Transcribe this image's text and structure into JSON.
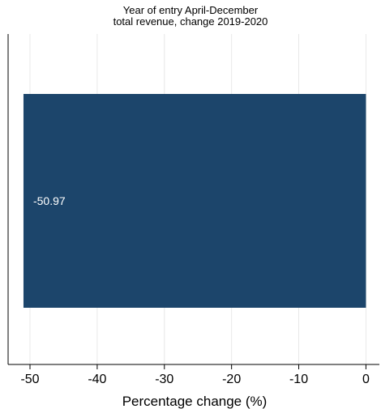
{
  "chart_data": {
    "type": "bar",
    "orientation": "horizontal",
    "title": "Year of entry April-December",
    "subtitle": "total revenue, change 2019-2020",
    "xlabel": "Percentage change (%)",
    "ylabel": "",
    "categories": [
      ""
    ],
    "values": [
      -50.97
    ],
    "data_labels": [
      "-50.97"
    ],
    "xlim": [
      -53.5,
      2
    ],
    "xticks": [
      -50,
      -40,
      -30,
      -20,
      -10,
      0
    ],
    "xtick_labels": [
      "-50",
      "-40",
      "-30",
      "-20",
      "-10",
      "0"
    ],
    "grid": "vertical",
    "legend": "none",
    "colors": {
      "bar": "#1c456b",
      "grid": "#e8e8e8",
      "axis": "#000000",
      "background": "#ffffff"
    }
  }
}
